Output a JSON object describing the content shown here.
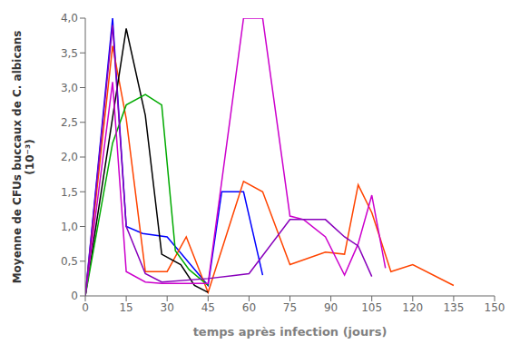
{
  "chart_data": {
    "type": "line",
    "xlabel": "temps après infection (jours)",
    "ylabel": "Moyenne de CFUs buccaux de C. albicans\n(10⁻³)",
    "xlim": [
      0,
      150
    ],
    "ylim": [
      0,
      4.0
    ],
    "xticks": [
      0,
      15,
      30,
      45,
      60,
      75,
      90,
      105,
      120,
      135,
      150
    ],
    "yticks": [
      0,
      {
        "value": 0.5,
        "label": "0,5"
      },
      {
        "value": 1.0,
        "label": "1,0"
      },
      {
        "value": 1.5,
        "label": "1,5"
      },
      {
        "value": 2.0,
        "label": "2,0"
      },
      {
        "value": 2.5,
        "label": "2,5"
      },
      {
        "value": 3.0,
        "label": "3,0"
      },
      {
        "value": 3.5,
        "label": "3,5"
      },
      {
        "value": 4.0,
        "label": "4,0"
      }
    ],
    "grid": false,
    "series": [
      {
        "color": "#0000FF",
        "x": [
          0,
          10,
          15,
          21,
          30,
          45,
          50,
          58,
          65
        ],
        "values": [
          0.0,
          4.0,
          1.0,
          0.9,
          0.85,
          0.15,
          1.5,
          1.5,
          0.3
        ]
      },
      {
        "color": "#FF4400",
        "x": [
          0,
          10,
          15,
          22,
          30,
          37,
          45,
          58,
          65,
          75,
          88,
          95,
          100,
          105,
          112,
          120,
          135
        ],
        "values": [
          0.0,
          3.6,
          2.55,
          0.35,
          0.35,
          0.85,
          0.05,
          1.65,
          1.5,
          0.45,
          0.63,
          0.6,
          1.6,
          1.2,
          0.35,
          0.45,
          0.15
        ]
      },
      {
        "color": "#000000",
        "x": [
          0,
          15,
          22,
          28,
          35,
          40,
          45
        ],
        "values": [
          0.0,
          3.85,
          2.6,
          0.6,
          0.45,
          0.15,
          0.05
        ]
      },
      {
        "color": "#00AA00",
        "x": [
          0,
          10,
          15,
          22,
          28,
          33,
          38,
          45
        ],
        "values": [
          0.0,
          2.2,
          2.75,
          2.9,
          2.75,
          0.65,
          0.38,
          0.15
        ]
      },
      {
        "color": "#CC00CC",
        "x": [
          0,
          10,
          15,
          22,
          28,
          45,
          58,
          65,
          75,
          80,
          88,
          95,
          100,
          105,
          110
        ],
        "values": [
          0.0,
          3.08,
          0.35,
          0.2,
          0.18,
          0.18,
          4.0,
          4.0,
          1.15,
          1.1,
          0.85,
          0.3,
          0.75,
          1.45,
          0.4
        ]
      },
      {
        "color": "#8800BB",
        "x": [
          0,
          10,
          15,
          22,
          28,
          45,
          60,
          75,
          88,
          95,
          100,
          105
        ],
        "values": [
          0.0,
          3.9,
          1.0,
          0.32,
          0.2,
          0.25,
          0.32,
          1.1,
          1.1,
          0.85,
          0.72,
          0.28
        ]
      }
    ]
  }
}
